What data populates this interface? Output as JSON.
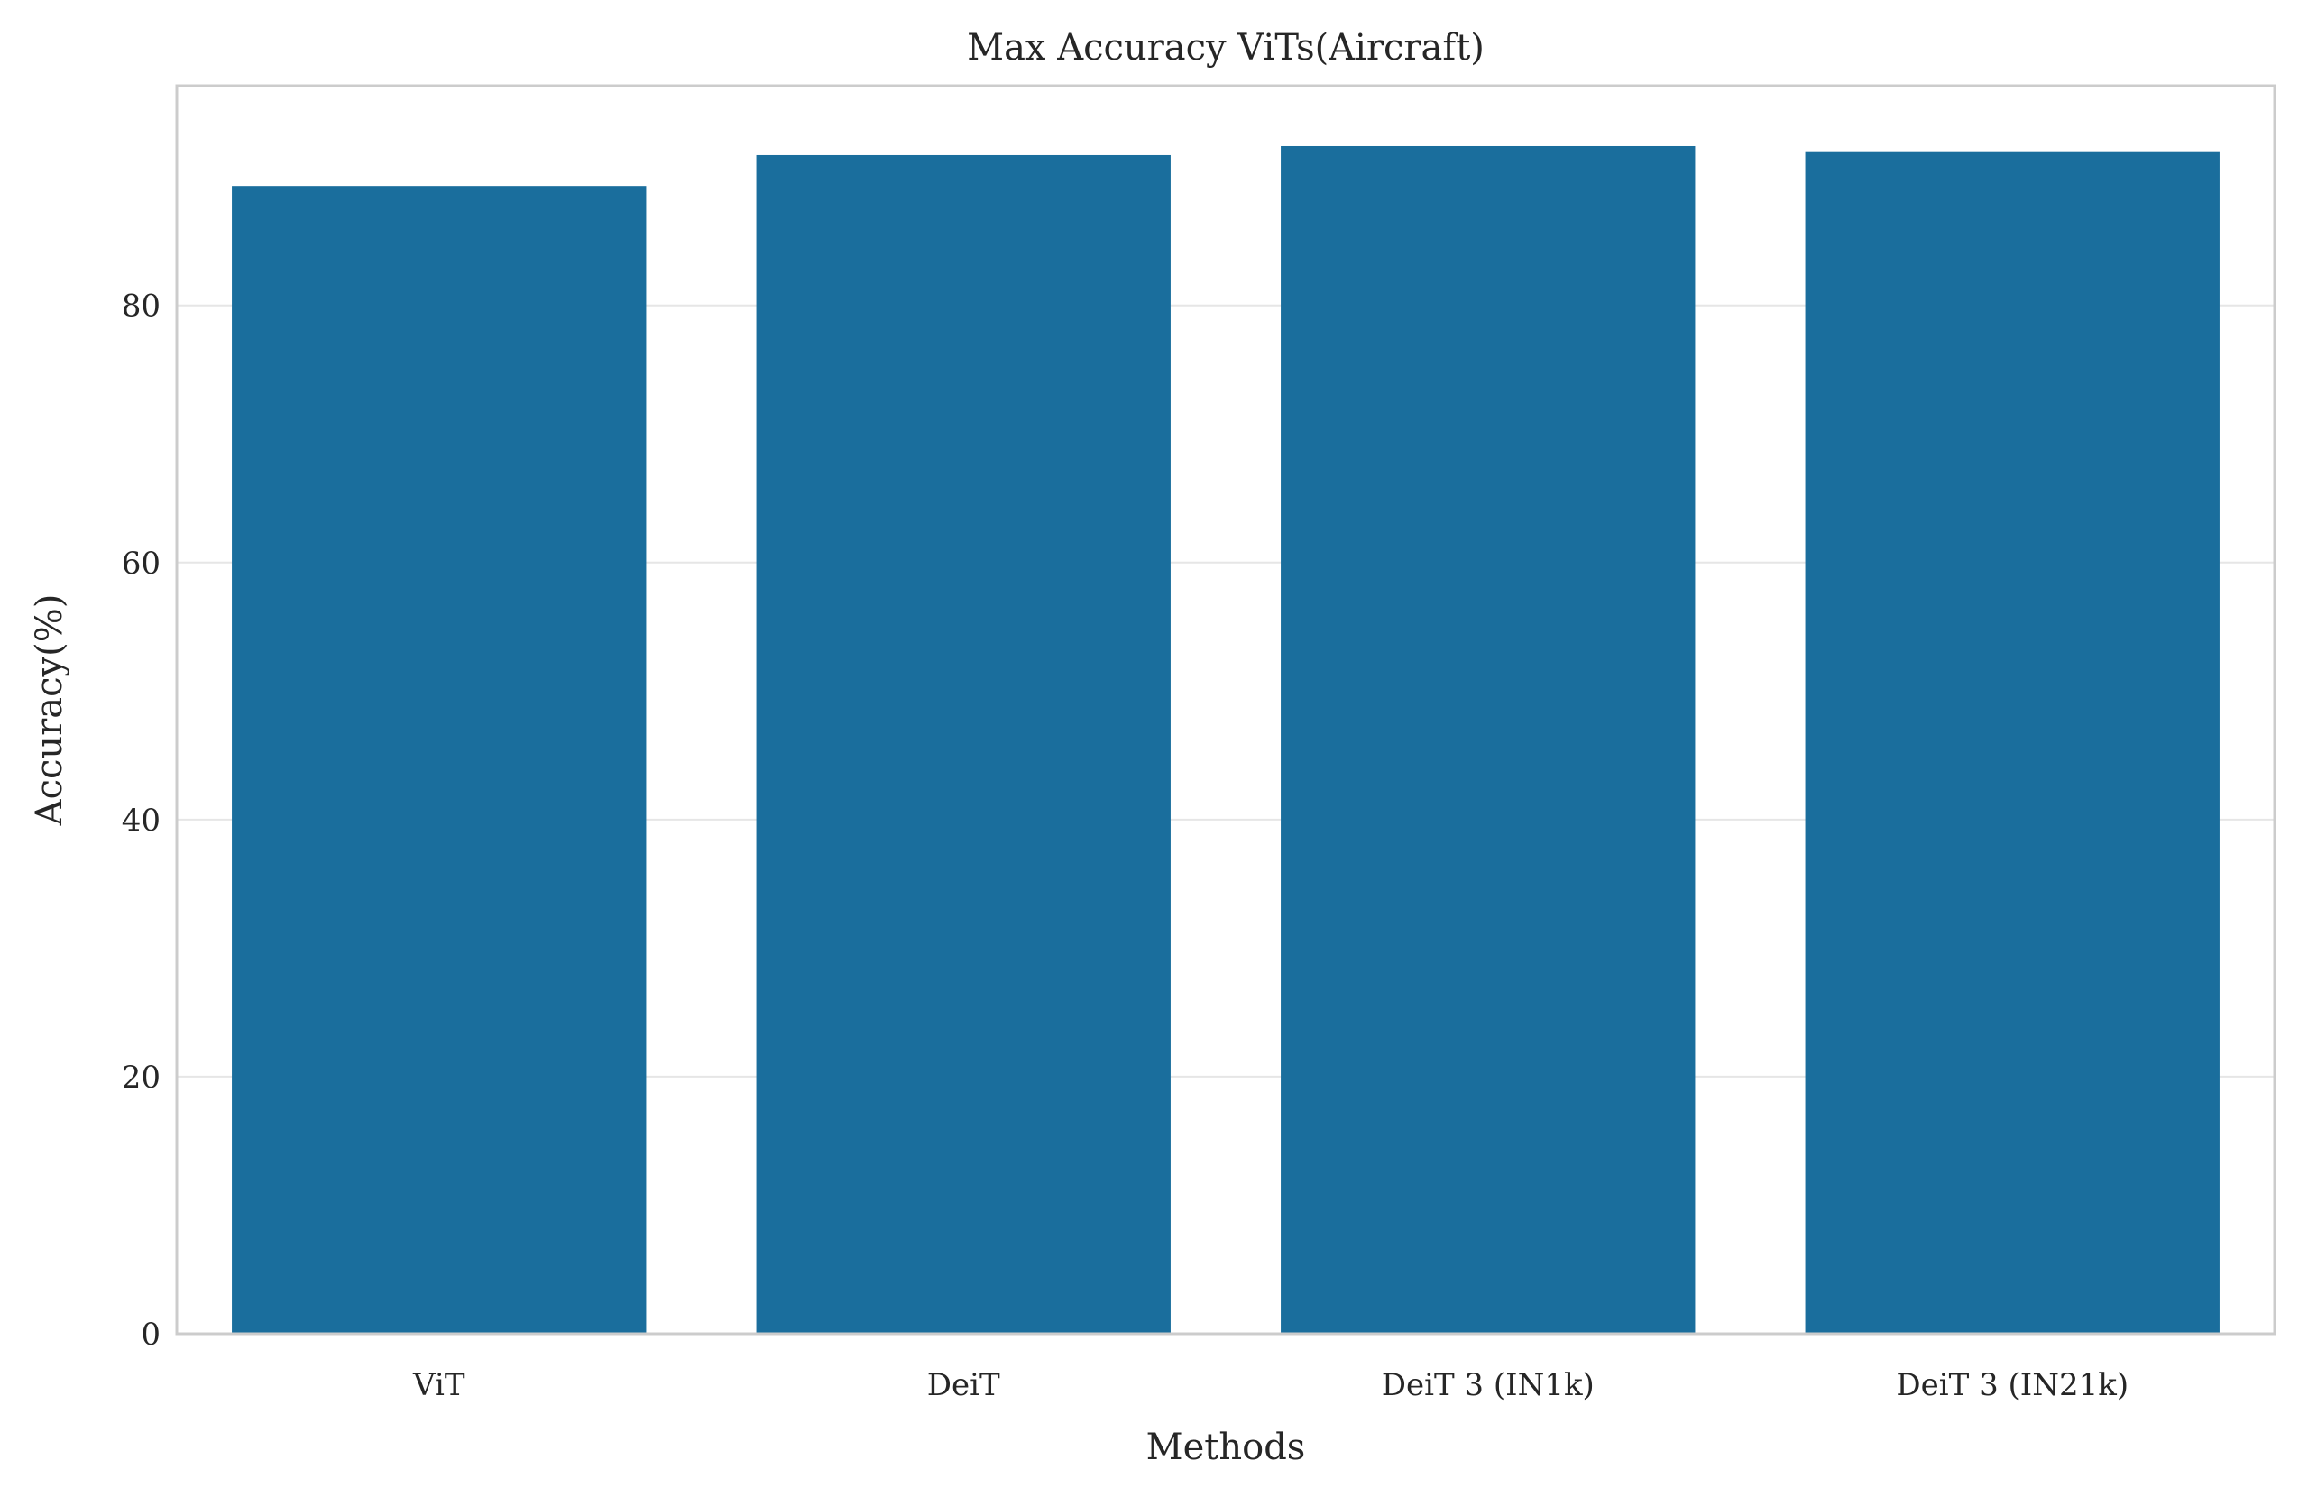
{
  "chart_data": {
    "type": "bar",
    "title": "Max Accuracy ViTs(Aircraft)",
    "xlabel": "Methods",
    "ylabel": "Accuracy(%)",
    "categories": [
      "ViT",
      "DeiT",
      "DeiT 3 (IN1k)",
      "DeiT 3 (IN21k)"
    ],
    "values": [
      89.3,
      91.7,
      92.4,
      92.0
    ],
    "ylim": [
      0,
      97.1
    ],
    "yticks": [
      0,
      20,
      40,
      60,
      80
    ],
    "grid": true,
    "bar_color": "#1a6e9d"
  }
}
